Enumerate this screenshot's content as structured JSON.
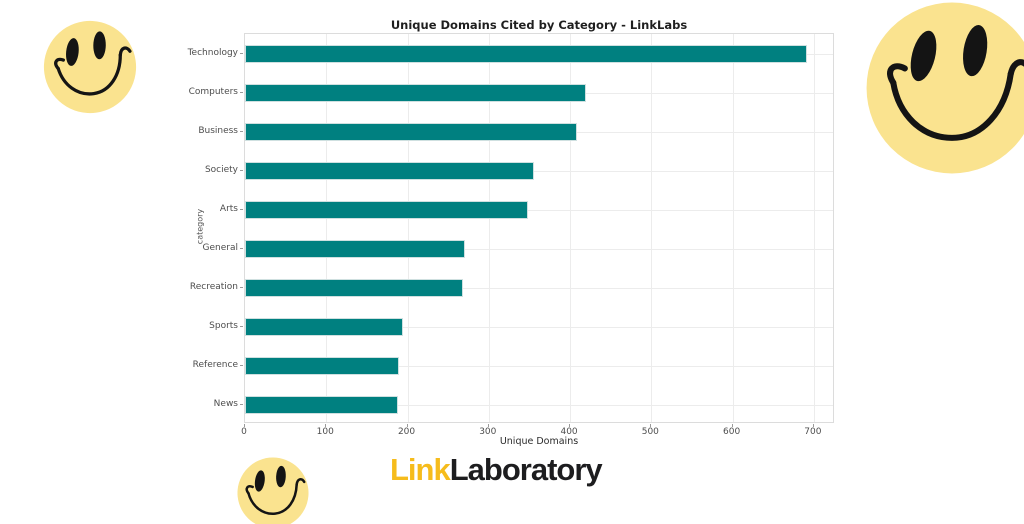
{
  "chart_data": {
    "type": "bar",
    "orientation": "horizontal",
    "title": "Unique Domains Cited by Category - LinkLabs",
    "xlabel": "Unique Domains",
    "ylabel": "category",
    "categories": [
      "Technology",
      "Computers",
      "Business",
      "Society",
      "Arts",
      "General",
      "Recreation",
      "Sports",
      "Reference",
      "News"
    ],
    "values": [
      692,
      420,
      408,
      356,
      348,
      271,
      268,
      194,
      190,
      188
    ],
    "x_ticks": [
      0,
      100,
      200,
      300,
      400,
      500,
      600,
      700
    ],
    "xlim": [
      0,
      726
    ],
    "grid": true,
    "legend": false,
    "bar_color": "#008080",
    "bar_edge_color": "#cfe0e0",
    "grid_color": "#ececec",
    "spine_color": "#dcdcdc"
  },
  "branding": {
    "logo_link": "Link",
    "logo_laboratory": "Laboratory",
    "logo_link_color": "#f6bc1c",
    "logo_text_color": "#1d1d1f"
  },
  "decorations": {
    "smiley_fill_color": "#fae38f",
    "smiley_line_color": "#141414",
    "smiley_count": 3
  }
}
